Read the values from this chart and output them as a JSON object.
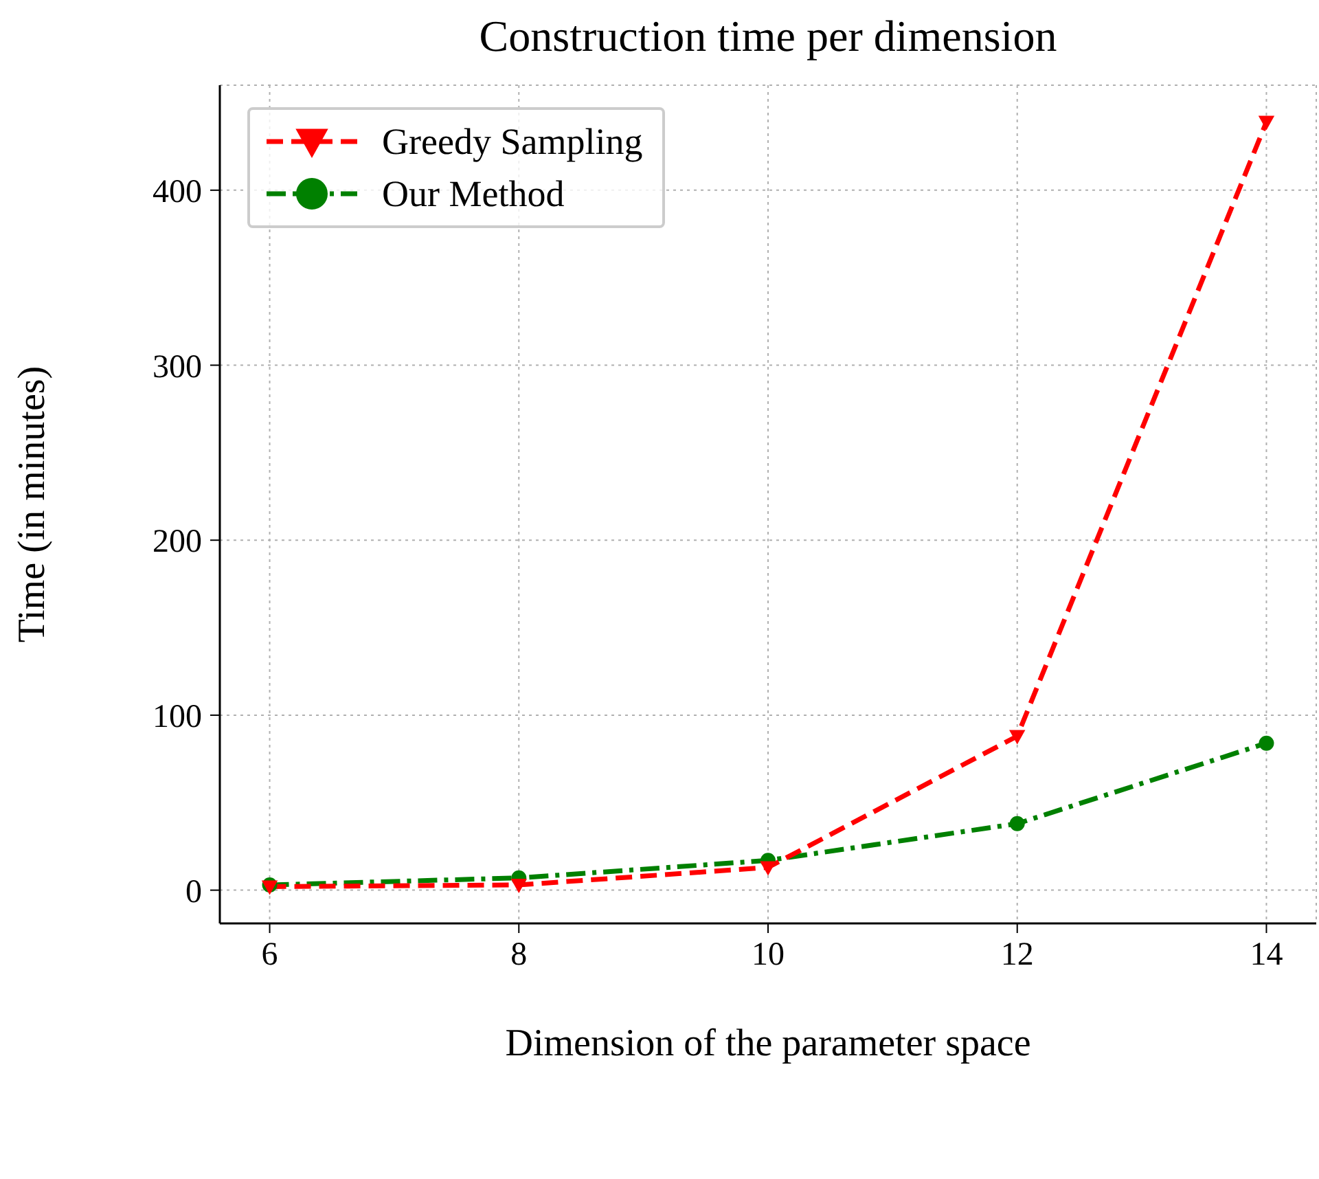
{
  "chart_data": {
    "type": "line",
    "title": "Construction time per dimension",
    "xlabel": "Dimension of the parameter space",
    "ylabel": "Time (in minutes)",
    "x": [
      6,
      8,
      10,
      12,
      14
    ],
    "series": [
      {
        "name": "Greedy Sampling",
        "color": "#ff0000",
        "values": [
          2,
          3,
          13,
          88,
          439
        ],
        "marker": "triangle",
        "line_style": "dashed"
      },
      {
        "name": "Our Method",
        "color": "#008000",
        "values": [
          3,
          7,
          17,
          38,
          84
        ],
        "marker": "circle",
        "line_style": "dashdot"
      }
    ],
    "xlim": [
      5.6,
      14.4
    ],
    "xticks": [
      6,
      8,
      10,
      12,
      14
    ],
    "ylim": [
      -19,
      460
    ],
    "yticks": [
      0,
      100,
      200,
      300,
      400
    ],
    "grid": true,
    "legend": "top left"
  }
}
